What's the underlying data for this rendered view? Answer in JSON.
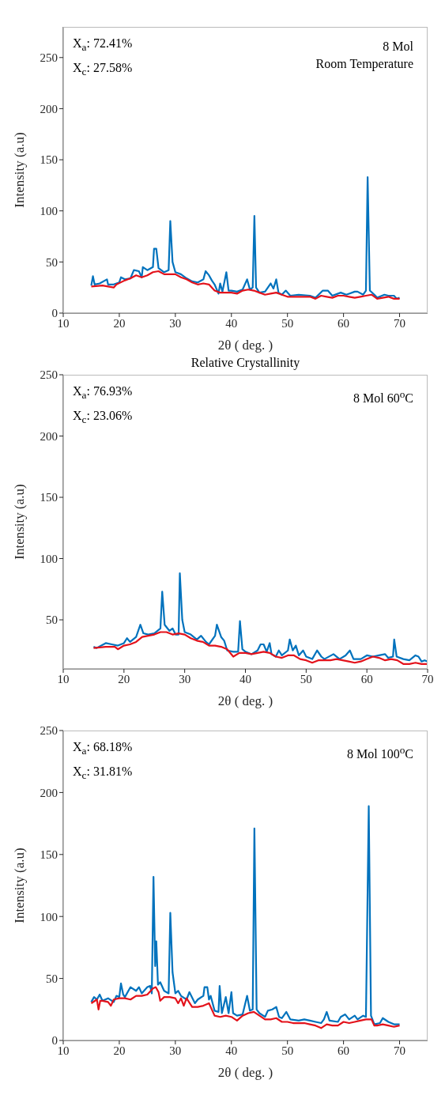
{
  "chart_data": [
    {
      "type": "line",
      "xlabel": "2θ ( deg. )",
      "ylabel": "Intensity (a.u)",
      "xlim": [
        10,
        75
      ],
      "xticks": [
        10,
        20,
        30,
        40,
        50,
        60,
        70
      ],
      "ylim": [
        0,
        280
      ],
      "yticks": [
        0,
        50,
        100,
        150,
        200,
        250
      ],
      "grid": false,
      "marker": "none",
      "line_style": "solid",
      "annotations": [
        "X$_{a}$: 72.41%",
        "X$_{c}$: 27.58%",
        "8 Mol",
        "Room Temperature"
      ],
      "series": [
        {
          "color": "#0072bd",
          "x": [
            15,
            15.3,
            15.6,
            16.5,
            17.8,
            18,
            19,
            20,
            20.3,
            21,
            22,
            22.6,
            23.5,
            24,
            24.2,
            25,
            26,
            26.2,
            26.6,
            27,
            28,
            28.8,
            29.1,
            29.5,
            30,
            31,
            32,
            33,
            34,
            35,
            35.4,
            36,
            36.5,
            37,
            37.7,
            38,
            38.4,
            39.1,
            39.5,
            40,
            41,
            42,
            42.8,
            43.3,
            43.8,
            44.1,
            44.4,
            45,
            46,
            47,
            47.5,
            48,
            48.4,
            49,
            49.7,
            50.5,
            52,
            54,
            55,
            56.3,
            57.2,
            58,
            59.5,
            60.5,
            61,
            62,
            62.5,
            63.5,
            64,
            64.3,
            64.7,
            65.5,
            66,
            67.3,
            68,
            69,
            69.5,
            70
          ],
          "values": [
            27,
            36,
            28,
            29,
            33,
            28,
            28,
            30,
            35,
            33,
            34,
            42,
            41,
            35,
            45,
            42,
            45,
            63,
            63,
            44,
            40,
            42,
            90,
            50,
            40,
            38,
            34,
            31,
            30,
            33,
            41,
            37,
            32,
            28,
            19,
            29,
            21,
            40,
            22,
            22,
            21,
            23,
            33,
            23,
            25,
            95,
            25,
            20,
            21,
            29,
            24,
            33,
            20,
            18,
            22,
            17,
            18,
            17,
            15,
            22,
            22,
            17,
            20,
            18,
            19,
            21,
            21,
            18,
            22,
            133,
            22,
            18,
            15,
            18,
            17,
            17,
            14,
            15
          ]
        },
        {
          "color": "#e3121b",
          "x": [
            15,
            17,
            19,
            19.5,
            21,
            22,
            23,
            24,
            25,
            26,
            27,
            28,
            29,
            30,
            31,
            32,
            33,
            34,
            35,
            36,
            37,
            38,
            40,
            41,
            42,
            43,
            44,
            45,
            46,
            47,
            48,
            49,
            50,
            52,
            54,
            55,
            56,
            57,
            58,
            59,
            60,
            61,
            62,
            63,
            64,
            65,
            66,
            67,
            68,
            69,
            70
          ],
          "values": [
            26,
            27,
            25,
            28,
            32,
            34,
            37,
            35,
            37,
            40,
            41,
            38,
            38,
            38,
            35,
            33,
            30,
            28,
            29,
            28,
            22,
            20,
            20,
            19,
            22,
            23,
            22,
            20,
            18,
            19,
            20,
            18,
            16,
            16,
            16,
            14,
            17,
            16,
            15,
            17,
            17,
            16,
            15,
            16,
            17,
            18,
            14,
            15,
            16,
            14,
            14
          ]
        }
      ]
    },
    {
      "type": "line",
      "title": "Relative Crystallinity",
      "xlabel": "2θ ( deg. )",
      "ylabel": "Intensity (a.u)",
      "xlim": [
        10,
        70
      ],
      "xticks": [
        10,
        20,
        30,
        40,
        50,
        60,
        70
      ],
      "ylim": [
        10,
        250
      ],
      "yticks": [
        50,
        100,
        150,
        200,
        250
      ],
      "grid": false,
      "marker": "none",
      "line_style": "solid",
      "annotations": [
        "X$_{a}$: 76.93%",
        "X$_{c}$: 23.06%",
        "8 Mol 60$^{o}$C"
      ],
      "series": [
        {
          "color": "#0072bd",
          "x": [
            15,
            15.5,
            17,
            18,
            19,
            20,
            20.5,
            21,
            22,
            22.7,
            23.2,
            24,
            25,
            26,
            26.3,
            26.7,
            27.5,
            28,
            28.5,
            29,
            29.2,
            29.6,
            30,
            31,
            32,
            32.7,
            33.5,
            34,
            35,
            35.3,
            36,
            36.5,
            37,
            38,
            38.8,
            39.1,
            39.5,
            40,
            41,
            42,
            42.5,
            43,
            43.5,
            44,
            44.3,
            45,
            45.5,
            46,
            47,
            47.3,
            47.8,
            48.3,
            48.8,
            49.5,
            50,
            51,
            51.8,
            52.5,
            53,
            54.5,
            55.5,
            56.5,
            57.2,
            57.8,
            59,
            60,
            61,
            62,
            63,
            63.5,
            64.3,
            64.5,
            64.9,
            66,
            67,
            68,
            68.5,
            69,
            69.5,
            70
          ],
          "values": [
            28,
            27,
            31,
            30,
            29,
            31,
            35,
            32,
            36,
            46,
            39,
            38,
            39,
            43,
            73,
            46,
            41,
            43,
            38,
            38,
            88,
            50,
            40,
            38,
            34,
            37,
            32,
            30,
            37,
            46,
            36,
            33,
            25,
            24,
            24,
            49,
            26,
            24,
            22,
            25,
            30,
            30,
            24,
            31,
            22,
            20,
            25,
            21,
            25,
            34,
            25,
            29,
            21,
            25,
            20,
            18,
            25,
            20,
            18,
            22,
            18,
            21,
            25,
            18,
            18,
            21,
            20,
            21,
            22,
            19,
            20,
            34,
            20,
            18,
            17,
            21,
            20,
            16,
            17,
            16
          ]
        },
        {
          "color": "#e3121b",
          "x": [
            15,
            17,
            18.5,
            19,
            20,
            21,
            22,
            23,
            24,
            25,
            26,
            27,
            28,
            29,
            30,
            31,
            32,
            33,
            34,
            35,
            36,
            37,
            38,
            39,
            40,
            41,
            42,
            43,
            44,
            45,
            46,
            47,
            48,
            49,
            50,
            51,
            52,
            53,
            54,
            55,
            56,
            57,
            58,
            59,
            60,
            61,
            62,
            63,
            64,
            65,
            66,
            67,
            68,
            69,
            70
          ],
          "values": [
            27,
            28,
            28,
            26,
            29,
            30,
            32,
            36,
            37,
            38,
            40,
            40,
            38,
            39,
            38,
            35,
            33,
            32,
            29,
            29,
            28,
            26,
            20,
            23,
            23,
            22,
            23,
            24,
            23,
            20,
            19,
            21,
            21,
            18,
            17,
            15,
            17,
            17,
            17,
            18,
            17,
            16,
            15,
            16,
            18,
            20,
            19,
            17,
            18,
            17,
            14,
            14,
            15,
            14,
            14
          ]
        }
      ]
    },
    {
      "type": "line",
      "xlabel": "2θ ( deg. )",
      "ylabel": "Intensity (a.u)",
      "xlim": [
        10,
        75
      ],
      "xticks": [
        10,
        20,
        30,
        40,
        50,
        60,
        70
      ],
      "ylim": [
        0,
        250
      ],
      "yticks": [
        0,
        50,
        100,
        150,
        200,
        250
      ],
      "grid": false,
      "marker": "none",
      "line_style": "solid",
      "annotations": [
        "X$_{a}$: 68.18%",
        "X$_{c}$: 31.81%",
        "8 Mol 100$^{o}$C"
      ],
      "series": [
        {
          "color": "#0072bd",
          "x": [
            15,
            15.5,
            16,
            16.5,
            17,
            18,
            19,
            19.5,
            20,
            20.3,
            20.7,
            21,
            22,
            23,
            23.5,
            24,
            25,
            25.5,
            25.8,
            26.1,
            26.4,
            26.6,
            26.9,
            27.3,
            28,
            28.8,
            29.1,
            29.5,
            30,
            30.5,
            31,
            32,
            32.5,
            33.5,
            34,
            35,
            35.2,
            35.7,
            36,
            36.3,
            37,
            37.7,
            37.9,
            38.3,
            39,
            39.5,
            40,
            40.3,
            41,
            42,
            42.8,
            43.3,
            43.8,
            44.1,
            44.5,
            45,
            46,
            46.5,
            47.3,
            48,
            48.5,
            49,
            49.8,
            50.5,
            52,
            53,
            54,
            55,
            56,
            56.5,
            57,
            57.5,
            59,
            59.5,
            60.3,
            61,
            62,
            62.5,
            63.5,
            64,
            64.5,
            64.9,
            65.5,
            66.5,
            67,
            68,
            69,
            70
          ],
          "values": [
            31,
            35,
            33,
            37,
            32,
            34,
            31,
            36,
            35,
            46,
            37,
            35,
            43,
            40,
            43,
            38,
            43,
            44,
            38,
            132,
            60,
            80,
            45,
            47,
            40,
            38,
            103,
            55,
            38,
            40,
            36,
            33,
            39,
            30,
            33,
            36,
            43,
            43,
            33,
            36,
            24,
            23,
            44,
            22,
            35,
            22,
            39,
            22,
            20,
            21,
            36,
            24,
            25,
            171,
            25,
            22,
            19,
            24,
            25,
            27,
            19,
            18,
            23,
            17,
            16,
            17,
            16,
            15,
            14,
            17,
            23,
            16,
            15,
            19,
            21,
            17,
            20,
            17,
            20,
            19,
            189,
            20,
            13,
            14,
            18,
            15,
            13,
            13
          ]
        },
        {
          "color": "#e3121b",
          "x": [
            15,
            16,
            16.3,
            16.6,
            17,
            18,
            18.5,
            19,
            20,
            21,
            22,
            23,
            24,
            25,
            26,
            26.5,
            27,
            27.3,
            28,
            29,
            30,
            30.5,
            31,
            31.5,
            32,
            33,
            34,
            35,
            36,
            37,
            38,
            39,
            40,
            41,
            42,
            43,
            44,
            45,
            46,
            47,
            48,
            49,
            50,
            51,
            52,
            53,
            54,
            55,
            56,
            57,
            58,
            59,
            60,
            61,
            62,
            63,
            64,
            65,
            65.5,
            66,
            67,
            68,
            69,
            70
          ],
          "values": [
            30,
            33,
            25,
            32,
            32,
            31,
            28,
            33,
            34,
            34,
            33,
            36,
            36,
            37,
            42,
            43,
            39,
            32,
            35,
            35,
            34,
            30,
            34,
            28,
            34,
            27,
            27,
            28,
            30,
            20,
            19,
            20,
            19,
            16,
            20,
            22,
            23,
            20,
            17,
            17,
            18,
            15,
            15,
            14,
            14,
            14,
            13,
            12,
            10,
            13,
            12,
            12,
            15,
            14,
            15,
            16,
            17,
            17,
            12,
            12,
            13,
            12,
            11,
            12
          ]
        }
      ]
    }
  ]
}
